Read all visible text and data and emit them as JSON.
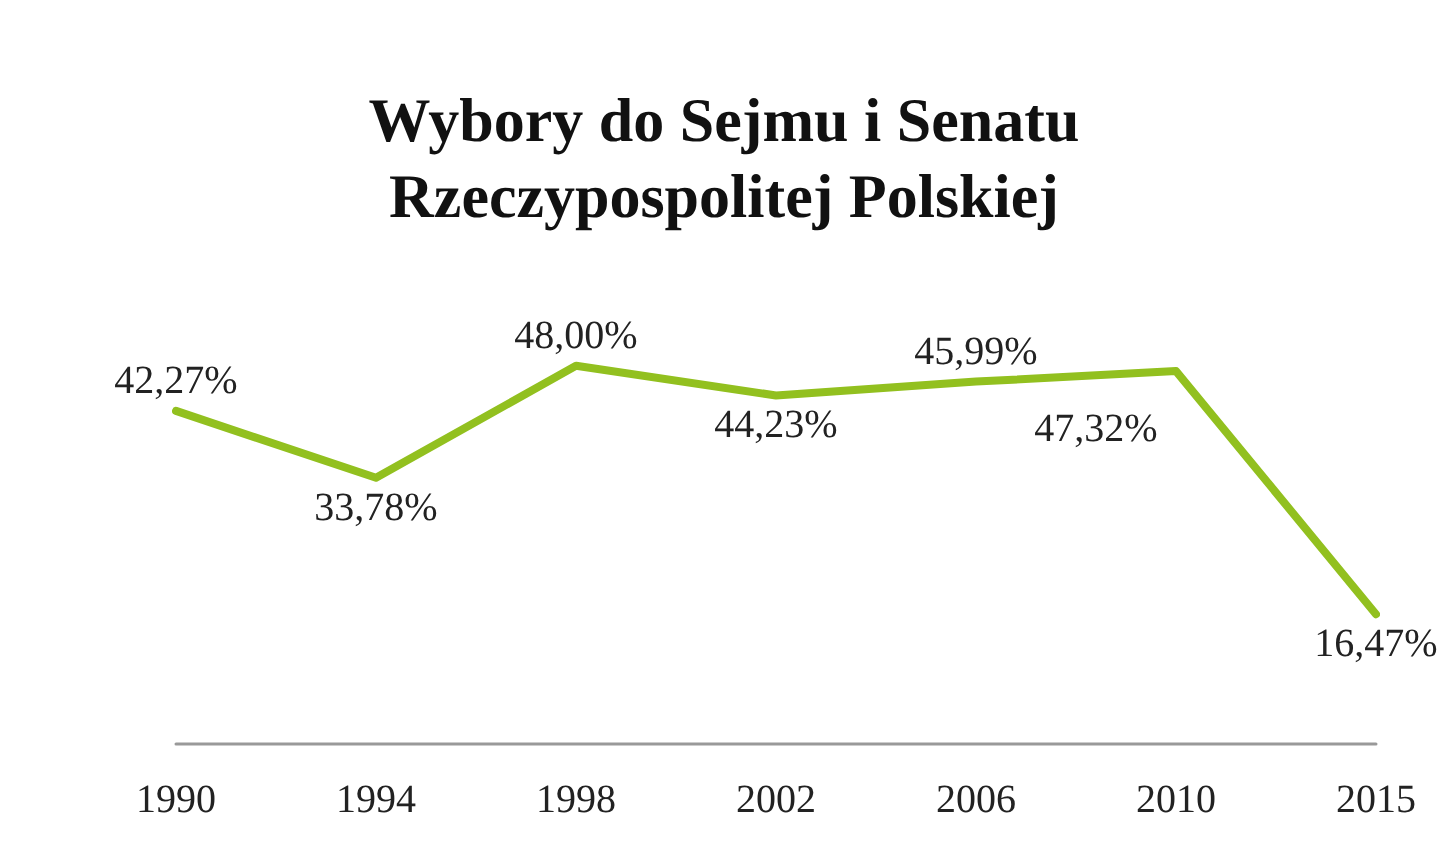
{
  "chart_data": {
    "type": "line",
    "title": "Wybory do Sejmu i Senatu\nRzeczypospolitej Polskiej",
    "categories": [
      "1990",
      "1994",
      "1998",
      "2002",
      "2006",
      "2010",
      "2015"
    ],
    "series": [
      {
        "color": "#92c01f",
        "values": [
          42.27,
          33.78,
          48.0,
          44.23,
          45.99,
          47.32,
          16.47
        ],
        "value_labels": [
          "42,27%",
          "33,78%",
          "48,00%",
          "44,23%",
          "45,99%",
          "47,32%",
          "16,47%"
        ]
      }
    ],
    "grid": false,
    "marker": "none",
    "line_style": "solid"
  }
}
